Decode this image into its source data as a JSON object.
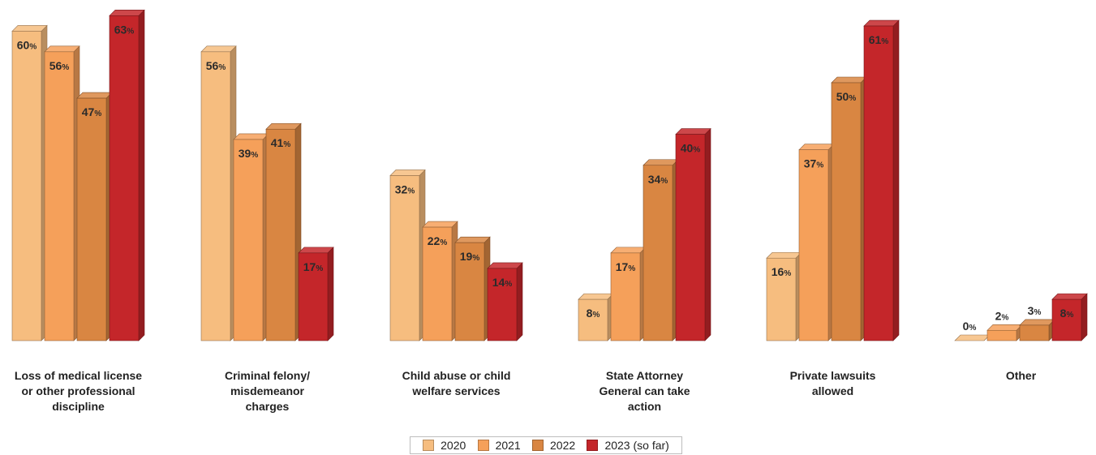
{
  "chart_data": {
    "type": "bar",
    "title": "",
    "xlabel": "",
    "ylabel": "",
    "ylim": [
      0,
      63
    ],
    "grid": false,
    "legend_position": "bottom-center",
    "value_suffix": "%",
    "categories": [
      [
        "Loss of medical license",
        "or other professional",
        "discipline"
      ],
      [
        "Criminal felony/",
        "misdemeanor",
        "charges"
      ],
      [
        "Child abuse or child",
        "welfare services"
      ],
      [
        "State Attorney",
        "General can take",
        "action"
      ],
      [
        "Private lawsuits",
        "allowed"
      ],
      [
        "Other"
      ]
    ],
    "series": [
      {
        "name": "2020",
        "color": "#f6bd7f",
        "values": [
          60,
          56,
          32,
          8,
          16,
          0
        ]
      },
      {
        "name": "2021",
        "color": "#f5a05a",
        "values": [
          56,
          39,
          22,
          17,
          37,
          2
        ]
      },
      {
        "name": "2022",
        "color": "#d98642",
        "values": [
          47,
          41,
          19,
          34,
          50,
          3
        ]
      },
      {
        "name": "2023 (so far)",
        "color": "#c4262a",
        "values": [
          63,
          17,
          14,
          40,
          61,
          8
        ]
      }
    ]
  }
}
